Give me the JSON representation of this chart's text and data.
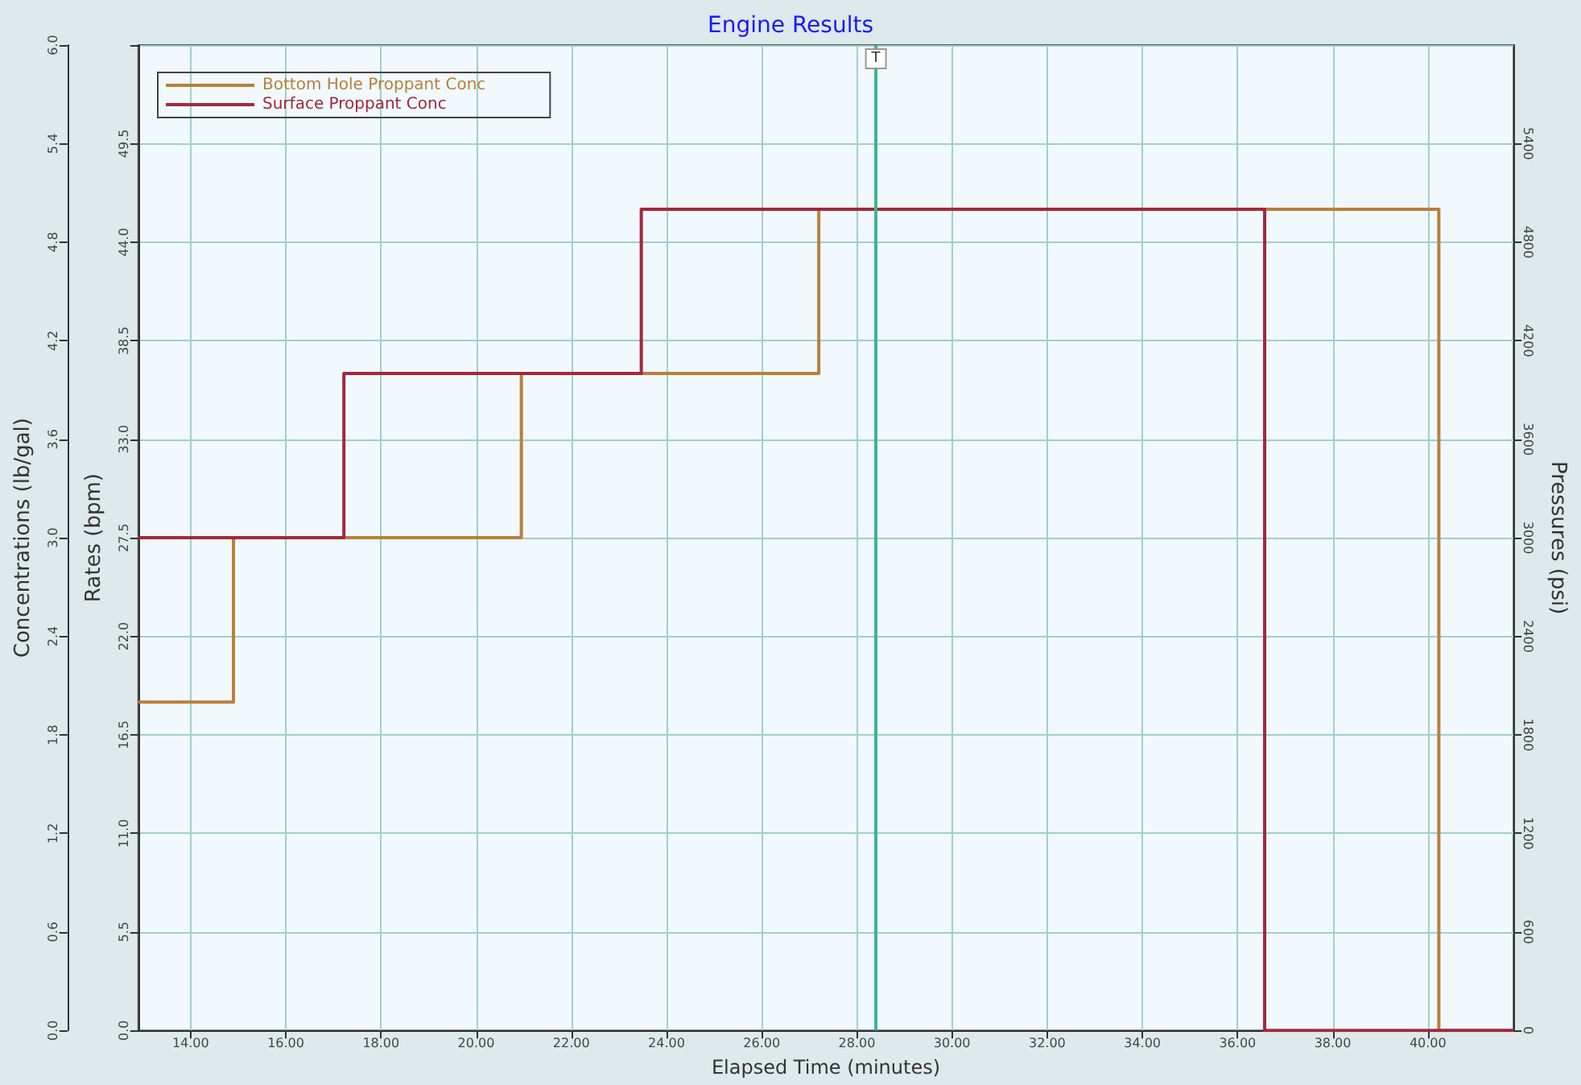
{
  "chart_data": {
    "type": "step",
    "title": "Engine Results",
    "xlabel": "Elapsed Time (minutes)",
    "ylabel": "Concentrations (lb/gal)",
    "y2label": "Rates (bpm)",
    "y3label": "Pressures (psi)",
    "xlim": [
      12.9,
      41.8
    ],
    "xticks": [
      {
        "value": 14,
        "label": "14.00"
      },
      {
        "value": 16,
        "label": "16.00"
      },
      {
        "value": 18,
        "label": "18.00"
      },
      {
        "value": 20,
        "label": "20.00"
      },
      {
        "value": 22,
        "label": "22.00"
      },
      {
        "value": 24,
        "label": "24.00"
      },
      {
        "value": 26,
        "label": "26.00"
      },
      {
        "value": 28,
        "label": "28.00"
      },
      {
        "value": 30,
        "label": "30.00"
      },
      {
        "value": 32,
        "label": "32.00"
      },
      {
        "value": 34,
        "label": "34.00"
      },
      {
        "value": 36,
        "label": "36.00"
      },
      {
        "value": 38,
        "label": "38.00"
      },
      {
        "value": 40,
        "label": "40.00"
      }
    ],
    "ylim": [
      0,
      6
    ],
    "yticks": [
      {
        "value": 0,
        "label": "0.0"
      },
      {
        "value": 0.6,
        "label": "0.6"
      },
      {
        "value": 1.2,
        "label": "1.2"
      },
      {
        "value": 1.8,
        "label": "1.8"
      },
      {
        "value": 2.4,
        "label": "2.4"
      },
      {
        "value": 3,
        "label": "3.0"
      },
      {
        "value": 3.6,
        "label": "3.6"
      },
      {
        "value": 4.2,
        "label": "4.2"
      },
      {
        "value": 4.8,
        "label": "4.8"
      },
      {
        "value": 5.4,
        "label": "5.4"
      },
      {
        "value": 6,
        "label": "6.0"
      }
    ],
    "y2lim": [
      0,
      55
    ],
    "y2ticks": [
      {
        "value": 0,
        "label": "0.0"
      },
      {
        "value": 5.5,
        "label": "5.5"
      },
      {
        "value": 11,
        "label": "11.0"
      },
      {
        "value": 16.5,
        "label": "16.5"
      },
      {
        "value": 22,
        "label": "22.0"
      },
      {
        "value": 27.5,
        "label": "27.5"
      },
      {
        "value": 33,
        "label": "33.0"
      },
      {
        "value": 38.5,
        "label": "38.5"
      },
      {
        "value": 44,
        "label": "44.0"
      },
      {
        "value": 49.5,
        "label": "49.5"
      },
      {
        "value": 55,
        "label": null
      }
    ],
    "y3lim": [
      0,
      6000
    ],
    "y3ticks": [
      0,
      600,
      1200,
      1800,
      2400,
      3000,
      3600,
      4200,
      4800,
      5400
    ],
    "series": [
      {
        "name": "Bottom Hole Proppant Conc",
        "color": "#b8803a",
        "x": [
          12.9,
          14.9,
          20.95,
          27.2,
          40.23,
          41.8
        ],
        "values": [
          2,
          3,
          4,
          5,
          0,
          0
        ]
      },
      {
        "name": "Surface Proppant Conc",
        "color": "#a3283c",
        "x": [
          12.9,
          17.22,
          23.47,
          36.57,
          41.8
        ],
        "values": [
          3,
          4,
          5,
          0,
          0
        ]
      }
    ],
    "ref_lines": [
      {
        "axis": "x",
        "value": 28.4,
        "label": "T",
        "color": "#3cb39a"
      }
    ],
    "grid": true,
    "legend": "top left",
    "marker": "none",
    "line_style": "solid"
  }
}
